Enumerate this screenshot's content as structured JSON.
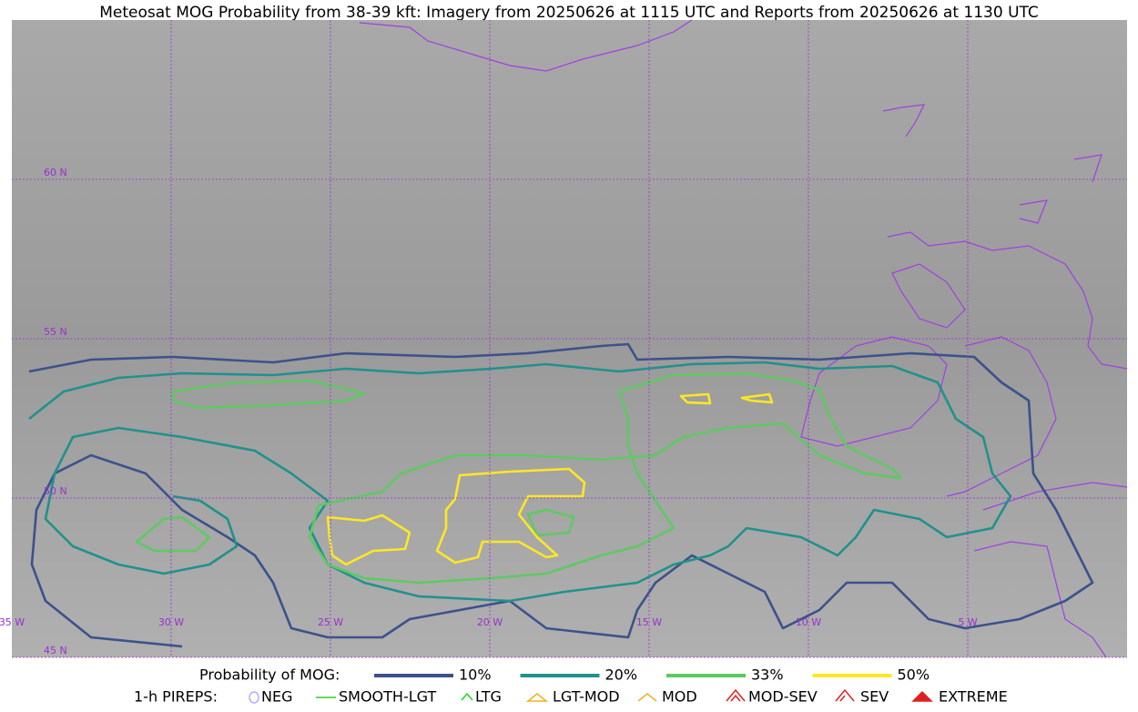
{
  "title": "Meteosat MOG Probability from 38-39 kft: Imagery from 20250626 at 1115 UTC and Reports from 20250626 at 1130 UTC",
  "grid_labels": {
    "longitudes": [
      "35 W",
      "30 W",
      "25 W",
      "20 W",
      "15 W",
      "10 W",
      "5 W"
    ],
    "latitudes": [
      "60 N",
      "55 N",
      "50 N",
      "45 N"
    ]
  },
  "legend": {
    "probability": {
      "label": "Probability of MOG:",
      "levels": [
        {
          "label": "10%",
          "color": "#3b528b"
        },
        {
          "label": "20%",
          "color": "#21918c"
        },
        {
          "label": "33%",
          "color": "#5ec962"
        },
        {
          "label": "50%",
          "color": "#fde725"
        }
      ]
    },
    "pireps": {
      "label": "1-h PIREPS:",
      "items": [
        "NEG",
        "SMOOTH-LGT",
        "LTG",
        "LGT-MOD",
        "MOD",
        "MOD-SEV",
        "SEV",
        "EXTREME"
      ]
    }
  }
}
